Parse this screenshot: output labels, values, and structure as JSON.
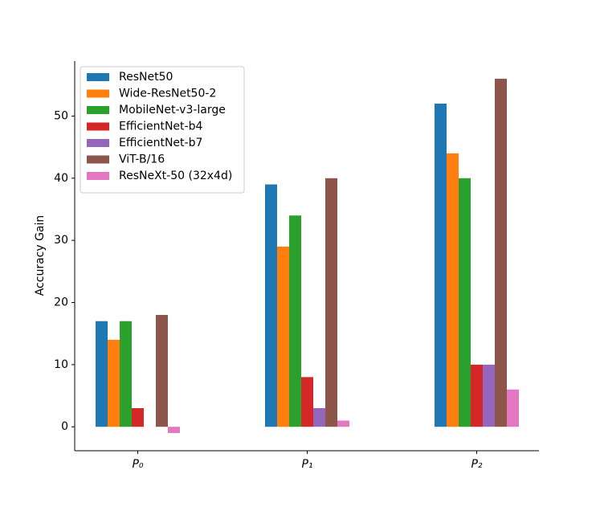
{
  "chart_data": {
    "type": "bar",
    "ylabel": "Accuracy Gain",
    "categories": [
      "P₀",
      "P₁",
      "P₂"
    ],
    "series": [
      {
        "name": "ResNet50",
        "color": "#1f77b4",
        "values": [
          17,
          39,
          52
        ]
      },
      {
        "name": "Wide-ResNet50-2",
        "color": "#ff7f0e",
        "values": [
          14,
          29,
          44
        ]
      },
      {
        "name": "MobileNet-v3-large",
        "color": "#2ca02c",
        "values": [
          17,
          34,
          40
        ]
      },
      {
        "name": "EfficientNet-b4",
        "color": "#d62728",
        "values": [
          3,
          8,
          10
        ]
      },
      {
        "name": "EfficientNet-b7",
        "color": "#9467bd",
        "values": [
          0,
          3,
          10
        ]
      },
      {
        "name": "ViT-B/16",
        "color": "#8c564b",
        "values": [
          18,
          40,
          56
        ]
      },
      {
        "name": "ResNeXt-50 (32x4d)",
        "color": "#e377c2",
        "values": [
          -1,
          1,
          6
        ]
      }
    ],
    "ylim": [
      -3.85,
      58.85
    ],
    "yticks": [
      0,
      10,
      20,
      30,
      40,
      50
    ],
    "legend": "upper left"
  }
}
